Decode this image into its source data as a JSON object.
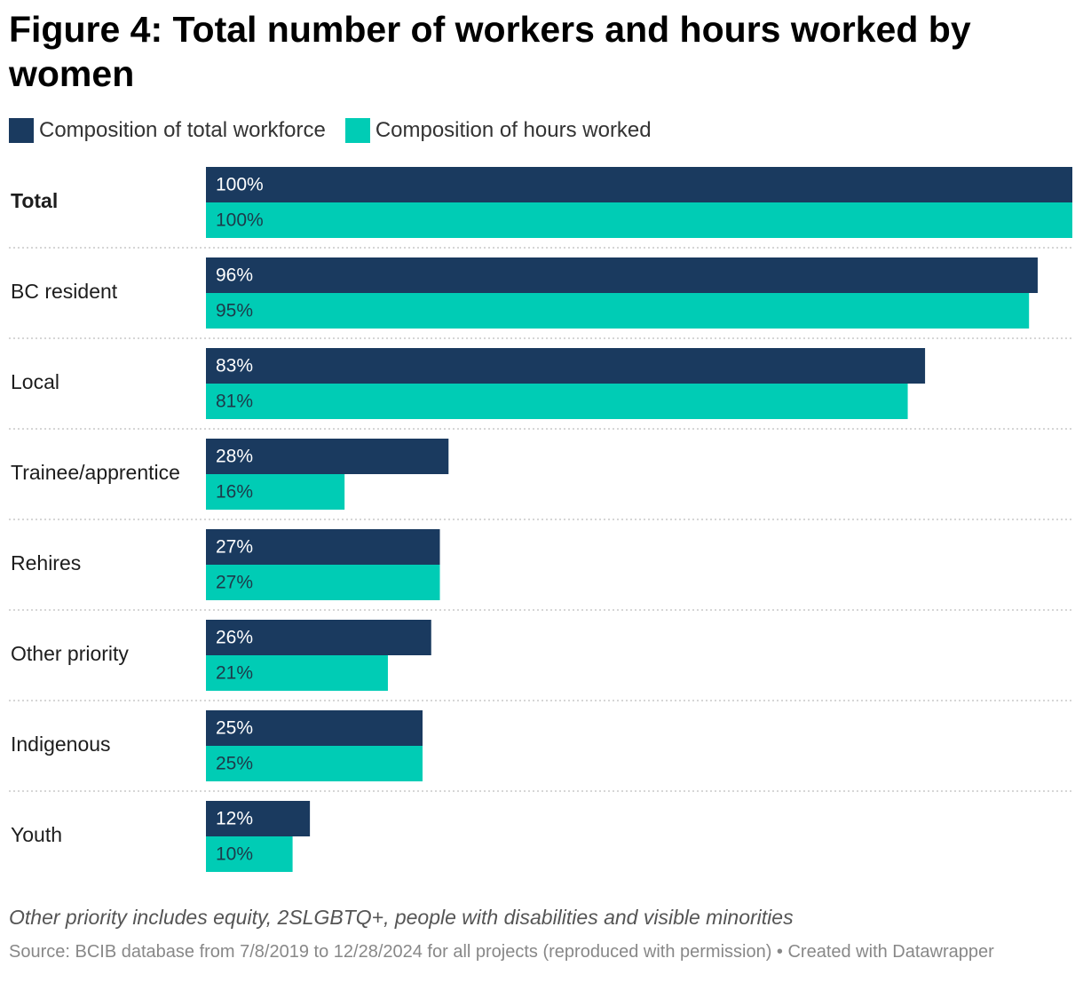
{
  "header": {
    "title": "Figure 4: Total number of workers and hours worked by women"
  },
  "legend": [
    {
      "label": "Composition of total workforce",
      "color": "#1a3a5f"
    },
    {
      "label": "Composition of hours worked",
      "color": "#00ccb5"
    }
  ],
  "chart_data": {
    "type": "bar",
    "orientation": "horizontal",
    "title": "Figure 4: Total number of workers and hours worked by women",
    "categories": [
      "Total",
      "BC resident",
      "Local",
      "Trainee/apprentice",
      "Rehires",
      "Other priority",
      "Indigenous",
      "Youth"
    ],
    "series": [
      {
        "name": "Composition of total workforce",
        "values": [
          100,
          96,
          83,
          28,
          27,
          26,
          25,
          12
        ],
        "labels": [
          "100%",
          "96%",
          "83%",
          "28%",
          "27%",
          "26%",
          "25%",
          "12%"
        ],
        "color": "#1a3a5f"
      },
      {
        "name": "Composition of hours worked",
        "values": [
          100,
          95,
          81,
          16,
          27,
          21,
          25,
          10
        ],
        "labels": [
          "100%",
          "95%",
          "81%",
          "16%",
          "27%",
          "21%",
          "25%",
          "10%"
        ],
        "color": "#00ccb5"
      }
    ],
    "xlim": [
      0,
      100
    ],
    "unit": "%",
    "xlabel": "",
    "ylabel": "",
    "grid": false,
    "legend_position": "top-left"
  },
  "footer": {
    "note": "Other priority includes equity, 2SLGBTQ+, people with disabilities and visible minorities",
    "source": "Source: BCIB database from 7/8/2019 to 12/28/2024 for all projects (reproduced with permission) • Created with Datawrapper"
  }
}
